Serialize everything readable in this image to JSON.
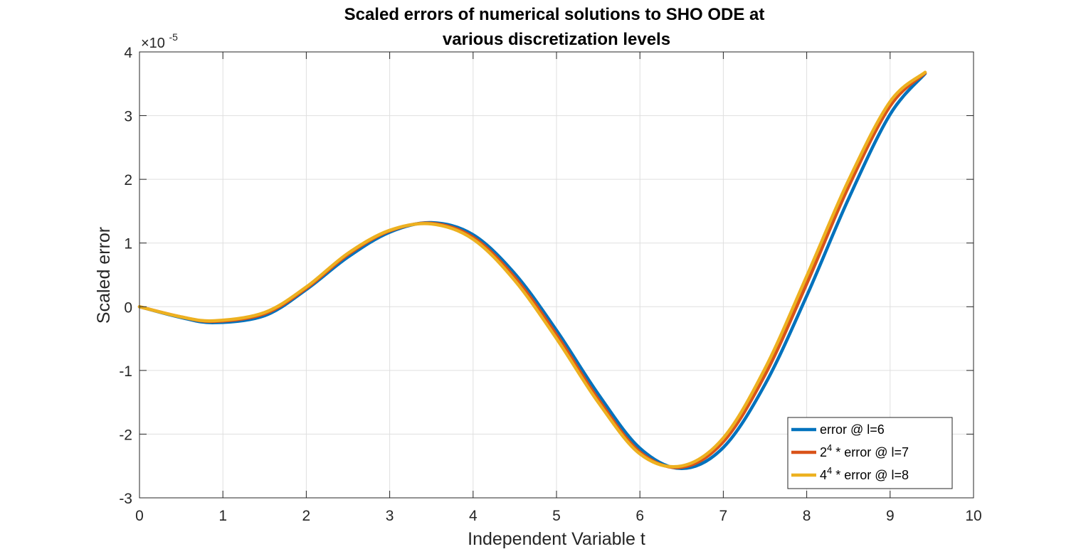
{
  "chart_data": {
    "type": "line",
    "title": [
      "Scaled errors of numerical solutions to SHO ODE at",
      "various discretization levels"
    ],
    "xlabel": "Independent Variable t",
    "ylabel": "Scaled error",
    "xlim": [
      0,
      10
    ],
    "ylim": [
      -3,
      4
    ],
    "y_multiplier": {
      "base": "×10",
      "exponent": "-5"
    },
    "x_ticks": [
      0,
      1,
      2,
      3,
      4,
      5,
      6,
      7,
      8,
      9,
      10
    ],
    "y_ticks": [
      -3,
      -2,
      -1,
      0,
      1,
      2,
      3,
      4
    ],
    "grid": true,
    "legend_position": "bottom-right",
    "x": [
      0,
      0.5,
      0.9,
      1.5,
      2,
      2.5,
      3,
      3.5,
      4,
      4.5,
      5,
      5.5,
      6,
      6.5,
      7,
      7.5,
      8,
      8.5,
      9,
      9.42
    ],
    "series": [
      {
        "name": "error @ l=6",
        "legend_prefix": "",
        "legend_sup": "",
        "legend_suffix": "error @ l=6",
        "color": "#0072BD",
        "values": [
          0,
          -0.17,
          -0.25,
          -0.14,
          0.27,
          0.78,
          1.17,
          1.32,
          1.13,
          0.52,
          -0.37,
          -1.37,
          -2.22,
          -2.54,
          -2.21,
          -1.22,
          0.17,
          1.69,
          3.02,
          3.66
        ]
      },
      {
        "name": "2^4 * error @ l=7",
        "legend_prefix": "2",
        "legend_sup": "4",
        "legend_suffix": " * error @ l=7",
        "color": "#D95319",
        "values": [
          0,
          -0.16,
          -0.23,
          -0.11,
          0.29,
          0.82,
          1.19,
          1.31,
          1.09,
          0.46,
          -0.44,
          -1.45,
          -2.28,
          -2.52,
          -2.12,
          -1.07,
          0.36,
          1.88,
          3.15,
          3.67
        ]
      },
      {
        "name": "4^4 * error @ l=8",
        "legend_prefix": "4",
        "legend_sup": "4",
        "legend_suffix": " * error @ l=8",
        "color": "#EDB120",
        "values": [
          0,
          -0.16,
          -0.22,
          -0.09,
          0.31,
          0.84,
          1.2,
          1.3,
          1.06,
          0.41,
          -0.5,
          -1.5,
          -2.31,
          -2.5,
          -2.06,
          -0.97,
          0.48,
          1.98,
          3.22,
          3.68
        ]
      }
    ]
  }
}
